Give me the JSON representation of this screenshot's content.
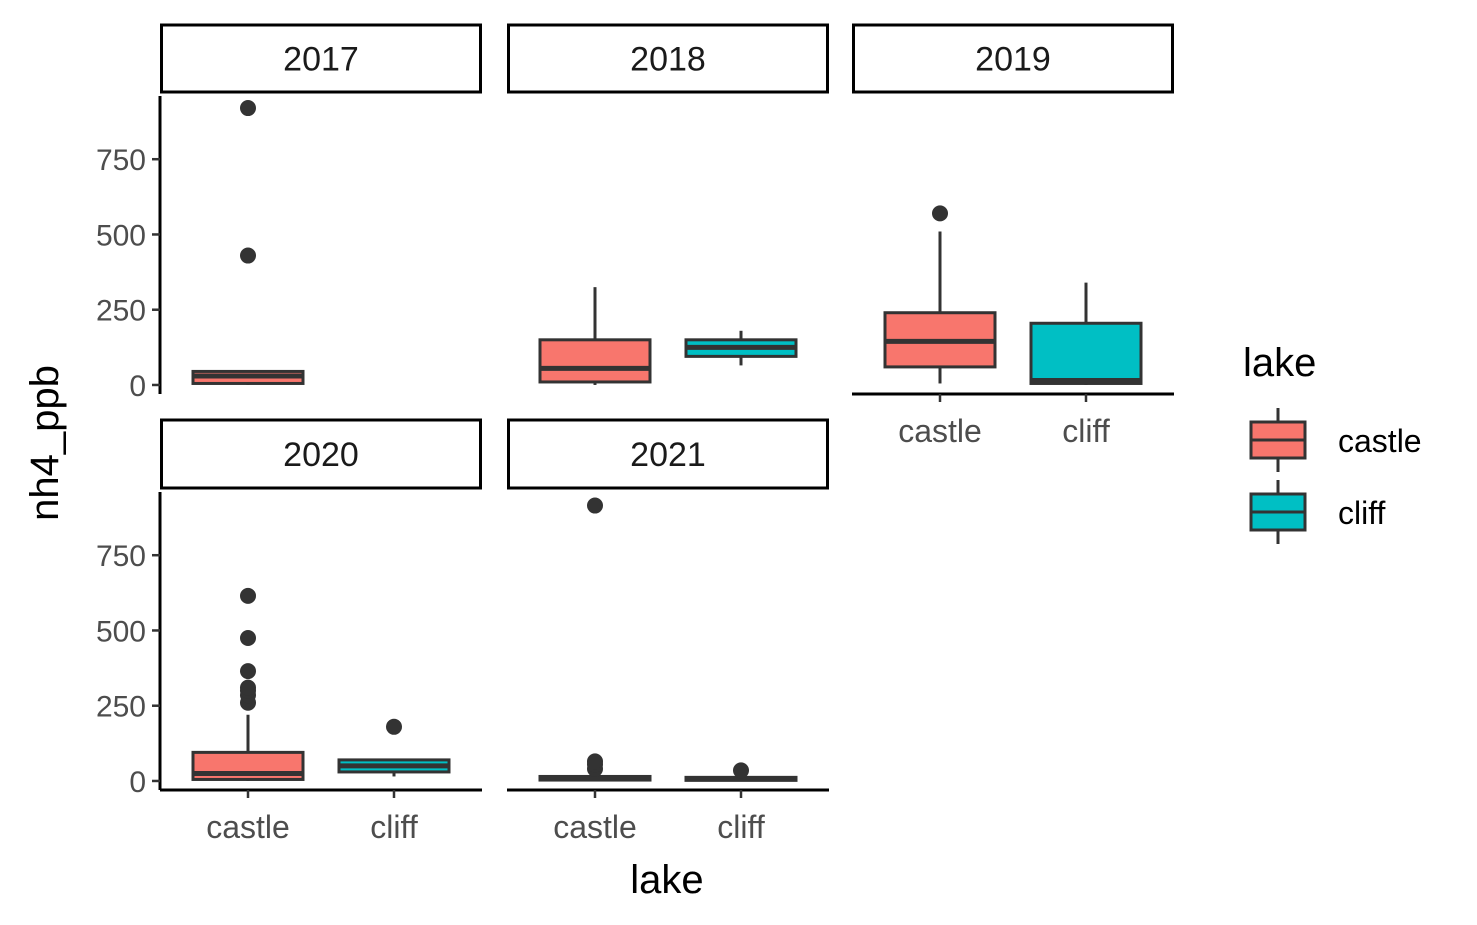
{
  "chart_data": {
    "type": "boxplot",
    "x_var": "lake",
    "y_var": "nh4_ppb",
    "xlabel": "lake",
    "ylabel": "nh4_ppb",
    "facet_by": "year",
    "ylim": [
      -30,
      960
    ],
    "y_ticks": [
      0,
      250,
      500,
      750
    ],
    "y_tick_labels": [
      "0",
      "250",
      "500",
      "750"
    ],
    "categories": [
      "castle",
      "cliff"
    ],
    "colors": {
      "castle": "#F8766D",
      "cliff": "#00BFC4",
      "outline": "#333333",
      "axis": "#000000"
    },
    "legend": {
      "title": "lake",
      "position": "right",
      "entries": [
        "castle",
        "cliff"
      ]
    },
    "facets": [
      {
        "label": "2017",
        "boxes": [
          {
            "lake": "castle",
            "min": 0,
            "q1": 5,
            "median": 30,
            "q3": 45,
            "max": 45,
            "outliers": [
              430,
              920
            ]
          }
        ]
      },
      {
        "label": "2018",
        "boxes": [
          {
            "lake": "castle",
            "min": 0,
            "q1": 10,
            "median": 55,
            "q3": 150,
            "max": 325,
            "outliers": []
          },
          {
            "lake": "cliff",
            "min": 65,
            "q1": 95,
            "median": 125,
            "q3": 150,
            "max": 180,
            "outliers": []
          }
        ]
      },
      {
        "label": "2019",
        "boxes": [
          {
            "lake": "castle",
            "min": 5,
            "q1": 60,
            "median": 145,
            "q3": 240,
            "max": 510,
            "outliers": [
              570
            ]
          },
          {
            "lake": "cliff",
            "min": 0,
            "q1": 5,
            "median": 15,
            "q3": 205,
            "max": 340,
            "outliers": []
          }
        ]
      },
      {
        "label": "2020",
        "boxes": [
          {
            "lake": "castle",
            "min": 0,
            "q1": 5,
            "median": 25,
            "q3": 95,
            "max": 220,
            "outliers": [
              260,
              285,
              300,
              310,
              365,
              475,
              615
            ]
          },
          {
            "lake": "cliff",
            "min": 15,
            "q1": 30,
            "median": 50,
            "q3": 70,
            "max": 70,
            "outliers": [
              180
            ]
          }
        ]
      },
      {
        "label": "2021",
        "boxes": [
          {
            "lake": "castle",
            "min": 0,
            "q1": 3,
            "median": 8,
            "q3": 15,
            "max": 30,
            "outliers": [
              40,
              55,
              65,
              915
            ]
          },
          {
            "lake": "cliff",
            "min": 0,
            "q1": 2,
            "median": 8,
            "q3": 12,
            "max": 20,
            "outliers": [
              35
            ]
          }
        ]
      }
    ]
  }
}
